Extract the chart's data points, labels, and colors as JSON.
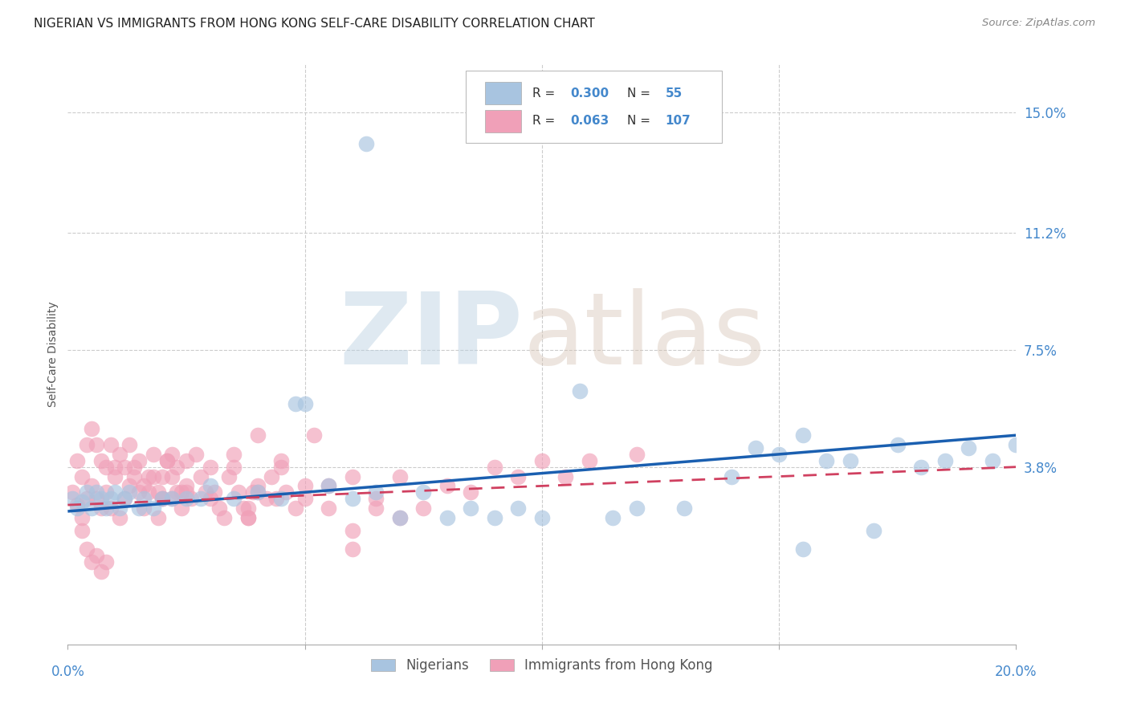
{
  "title": "NIGERIAN VS IMMIGRANTS FROM HONG KONG SELF-CARE DISABILITY CORRELATION CHART",
  "source": "Source: ZipAtlas.com",
  "ylabel": "Self-Care Disability",
  "ytick_labels": [
    "15.0%",
    "11.2%",
    "7.5%",
    "3.8%"
  ],
  "ytick_values": [
    0.15,
    0.112,
    0.075,
    0.038
  ],
  "xlim": [
    0.0,
    0.2
  ],
  "ylim": [
    -0.018,
    0.165
  ],
  "nigerian_R": "0.300",
  "nigerian_N": "55",
  "hk_R": "0.063",
  "hk_N": "107",
  "nigerian_color": "#a8c4e0",
  "nigerian_line_color": "#1a5fb0",
  "hk_color": "#f0a0b8",
  "hk_line_color": "#d04060",
  "legend_label_1": "Nigerians",
  "legend_label_2": "Immigrants from Hong Kong",
  "background_color": "#ffffff",
  "grid_color": "#cccccc",
  "title_fontsize": 11,
  "axis_label_color": "#4488cc",
  "nig_line_x0": 0.0,
  "nig_line_y0": 0.024,
  "nig_line_x1": 0.2,
  "nig_line_y1": 0.048,
  "hk_line_x0": 0.0,
  "hk_line_y0": 0.026,
  "hk_line_x1": 0.2,
  "hk_line_y1": 0.038,
  "nigerian_scatter_x": [
    0.001,
    0.002,
    0.003,
    0.004,
    0.005,
    0.006,
    0.007,
    0.008,
    0.009,
    0.01,
    0.011,
    0.012,
    0.013,
    0.015,
    0.016,
    0.018,
    0.02,
    0.022,
    0.025,
    0.028,
    0.03,
    0.035,
    0.04,
    0.045,
    0.05,
    0.055,
    0.06,
    0.065,
    0.07,
    0.075,
    0.08,
    0.085,
    0.09,
    0.095,
    0.1,
    0.108,
    0.115,
    0.12,
    0.13,
    0.14,
    0.15,
    0.155,
    0.16,
    0.165,
    0.17,
    0.175,
    0.18,
    0.185,
    0.19,
    0.195,
    0.2,
    0.048,
    0.063,
    0.145,
    0.155
  ],
  "nigerian_scatter_y": [
    0.028,
    0.025,
    0.027,
    0.03,
    0.025,
    0.03,
    0.028,
    0.025,
    0.028,
    0.03,
    0.025,
    0.028,
    0.03,
    0.025,
    0.028,
    0.025,
    0.028,
    0.028,
    0.028,
    0.028,
    0.032,
    0.028,
    0.03,
    0.028,
    0.058,
    0.032,
    0.028,
    0.03,
    0.022,
    0.03,
    0.022,
    0.025,
    0.022,
    0.025,
    0.022,
    0.062,
    0.022,
    0.025,
    0.025,
    0.035,
    0.042,
    0.012,
    0.04,
    0.04,
    0.018,
    0.045,
    0.038,
    0.04,
    0.044,
    0.04,
    0.045,
    0.058,
    0.14,
    0.044,
    0.048
  ],
  "hk_scatter_x": [
    0.001,
    0.002,
    0.003,
    0.004,
    0.005,
    0.006,
    0.007,
    0.008,
    0.009,
    0.01,
    0.011,
    0.012,
    0.013,
    0.014,
    0.015,
    0.016,
    0.017,
    0.018,
    0.019,
    0.02,
    0.021,
    0.022,
    0.022,
    0.023,
    0.024,
    0.025,
    0.026,
    0.027,
    0.028,
    0.029,
    0.03,
    0.031,
    0.032,
    0.033,
    0.034,
    0.035,
    0.036,
    0.037,
    0.038,
    0.039,
    0.04,
    0.04,
    0.042,
    0.043,
    0.044,
    0.045,
    0.046,
    0.048,
    0.05,
    0.052,
    0.002,
    0.003,
    0.004,
    0.005,
    0.006,
    0.007,
    0.008,
    0.009,
    0.01,
    0.011,
    0.012,
    0.013,
    0.014,
    0.015,
    0.016,
    0.017,
    0.018,
    0.019,
    0.02,
    0.021,
    0.022,
    0.023,
    0.024,
    0.025,
    0.003,
    0.004,
    0.005,
    0.006,
    0.007,
    0.008,
    0.02,
    0.025,
    0.03,
    0.035,
    0.038,
    0.04,
    0.045,
    0.05,
    0.055,
    0.06,
    0.065,
    0.07,
    0.075,
    0.08,
    0.09,
    0.095,
    0.1,
    0.105,
    0.11,
    0.12,
    0.06,
    0.065,
    0.07,
    0.085,
    0.038,
    0.055,
    0.06
  ],
  "hk_scatter_y": [
    0.03,
    0.026,
    0.022,
    0.028,
    0.032,
    0.028,
    0.025,
    0.03,
    0.025,
    0.035,
    0.022,
    0.028,
    0.032,
    0.038,
    0.03,
    0.025,
    0.03,
    0.035,
    0.022,
    0.028,
    0.04,
    0.035,
    0.028,
    0.03,
    0.025,
    0.032,
    0.028,
    0.042,
    0.035,
    0.03,
    0.038,
    0.03,
    0.025,
    0.022,
    0.035,
    0.042,
    0.03,
    0.025,
    0.022,
    0.03,
    0.048,
    0.032,
    0.028,
    0.035,
    0.028,
    0.038,
    0.03,
    0.025,
    0.032,
    0.048,
    0.04,
    0.035,
    0.045,
    0.05,
    0.045,
    0.04,
    0.038,
    0.045,
    0.038,
    0.042,
    0.038,
    0.045,
    0.035,
    0.04,
    0.032,
    0.035,
    0.042,
    0.03,
    0.035,
    0.04,
    0.042,
    0.038,
    0.03,
    0.04,
    0.018,
    0.012,
    0.008,
    0.01,
    0.005,
    0.008,
    0.028,
    0.03,
    0.028,
    0.038,
    0.025,
    0.03,
    0.04,
    0.028,
    0.032,
    0.035,
    0.028,
    0.035,
    0.025,
    0.032,
    0.038,
    0.035,
    0.04,
    0.035,
    0.04,
    0.042,
    0.018,
    0.025,
    0.022,
    0.03,
    0.022,
    0.025,
    0.012
  ]
}
